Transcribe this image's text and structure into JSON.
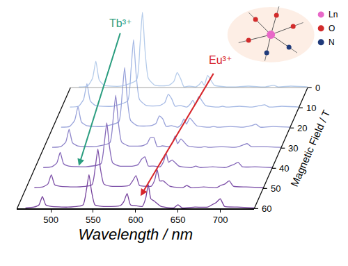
{
  "chart_data": {
    "type": "line",
    "x_label": "Wavelength / nm",
    "y_label": "Magnetic Field / T",
    "xlim": [
      460,
      740
    ],
    "xticks": [
      500,
      550,
      600,
      650,
      700
    ],
    "ylim": [
      0,
      60
    ],
    "yticks": [
      0,
      10,
      20,
      30,
      40,
      50,
      60
    ],
    "zlim": [
      0,
      1
    ],
    "grid": false,
    "x": [
      470,
      480,
      486,
      490,
      494,
      500,
      520,
      538,
      542,
      545,
      548,
      552,
      560,
      576,
      582,
      586,
      590,
      594,
      600,
      608,
      612,
      615,
      618,
      622,
      630,
      645,
      650,
      655,
      670,
      685,
      690,
      695,
      700,
      705,
      720,
      740
    ],
    "series": [
      {
        "field": 0,
        "color": "#b4cbea",
        "values": [
          0.01,
          0.02,
          0.12,
          0.35,
          0.1,
          0.03,
          0.02,
          0.1,
          0.55,
          1.0,
          0.5,
          0.12,
          0.03,
          0.03,
          0.08,
          0.2,
          0.12,
          0.01,
          0.02,
          0.01,
          0.04,
          0.08,
          0.03,
          0.16,
          0.03,
          0.01,
          0.01,
          0.01,
          0.02,
          0.01,
          0.01,
          0.02,
          0.03,
          0.01,
          0.02,
          0.01
        ]
      },
      {
        "field": 10,
        "color": "#a4b8e4",
        "values": [
          0.01,
          0.02,
          0.11,
          0.32,
          0.09,
          0.03,
          0.02,
          0.09,
          0.5,
          0.9,
          0.45,
          0.11,
          0.03,
          0.03,
          0.07,
          0.18,
          0.12,
          0.02,
          0.03,
          0.01,
          0.05,
          0.1,
          0.04,
          0.15,
          0.03,
          0.01,
          0.02,
          0.01,
          0.02,
          0.01,
          0.02,
          0.03,
          0.04,
          0.01,
          0.02,
          0.01
        ]
      },
      {
        "field": 20,
        "color": "#98a2da",
        "values": [
          0.01,
          0.02,
          0.1,
          0.28,
          0.08,
          0.03,
          0.02,
          0.08,
          0.44,
          0.8,
          0.4,
          0.1,
          0.03,
          0.03,
          0.06,
          0.16,
          0.12,
          0.02,
          0.03,
          0.01,
          0.05,
          0.12,
          0.05,
          0.13,
          0.03,
          0.01,
          0.02,
          0.01,
          0.02,
          0.01,
          0.02,
          0.03,
          0.05,
          0.01,
          0.02,
          0.01
        ]
      },
      {
        "field": 30,
        "color": "#8d84c9",
        "values": [
          0.01,
          0.02,
          0.08,
          0.25,
          0.07,
          0.03,
          0.02,
          0.07,
          0.39,
          0.7,
          0.35,
          0.08,
          0.03,
          0.03,
          0.06,
          0.14,
          0.14,
          0.02,
          0.03,
          0.02,
          0.07,
          0.16,
          0.06,
          0.12,
          0.03,
          0.01,
          0.02,
          0.01,
          0.02,
          0.01,
          0.02,
          0.04,
          0.06,
          0.02,
          0.02,
          0.01
        ]
      },
      {
        "field": 40,
        "color": "#8466b8",
        "values": [
          0.01,
          0.02,
          0.07,
          0.21,
          0.06,
          0.03,
          0.02,
          0.06,
          0.33,
          0.6,
          0.3,
          0.07,
          0.03,
          0.03,
          0.05,
          0.12,
          0.15,
          0.03,
          0.03,
          0.02,
          0.09,
          0.2,
          0.08,
          0.11,
          0.03,
          0.01,
          0.03,
          0.01,
          0.02,
          0.01,
          0.03,
          0.05,
          0.08,
          0.02,
          0.02,
          0.01
        ]
      },
      {
        "field": 50,
        "color": "#7d50a8",
        "values": [
          0.01,
          0.02,
          0.06,
          0.18,
          0.05,
          0.03,
          0.02,
          0.05,
          0.29,
          0.52,
          0.26,
          0.06,
          0.03,
          0.03,
          0.04,
          0.1,
          0.17,
          0.04,
          0.03,
          0.03,
          0.11,
          0.25,
          0.1,
          0.1,
          0.03,
          0.01,
          0.04,
          0.01,
          0.02,
          0.01,
          0.04,
          0.06,
          0.1,
          0.03,
          0.02,
          0.01
        ]
      },
      {
        "field": 60,
        "color": "#74409b",
        "values": [
          0.01,
          0.02,
          0.05,
          0.16,
          0.05,
          0.03,
          0.02,
          0.05,
          0.25,
          0.45,
          0.23,
          0.05,
          0.03,
          0.03,
          0.04,
          0.09,
          0.2,
          0.05,
          0.04,
          0.03,
          0.14,
          0.32,
          0.13,
          0.1,
          0.03,
          0.01,
          0.05,
          0.01,
          0.02,
          0.02,
          0.05,
          0.08,
          0.13,
          0.03,
          0.02,
          0.01
        ]
      }
    ],
    "annotations": [
      {
        "text": "Tb³⁺",
        "color": "#2a9d7f"
      },
      {
        "text": "Eu³⁺",
        "color": "#d7262b"
      }
    ],
    "inset_legend": [
      {
        "text": "Ln",
        "color": "#e868c8"
      },
      {
        "text": "O",
        "color": "#d22b2b"
      },
      {
        "text": "N",
        "color": "#1f3a7a"
      }
    ]
  }
}
